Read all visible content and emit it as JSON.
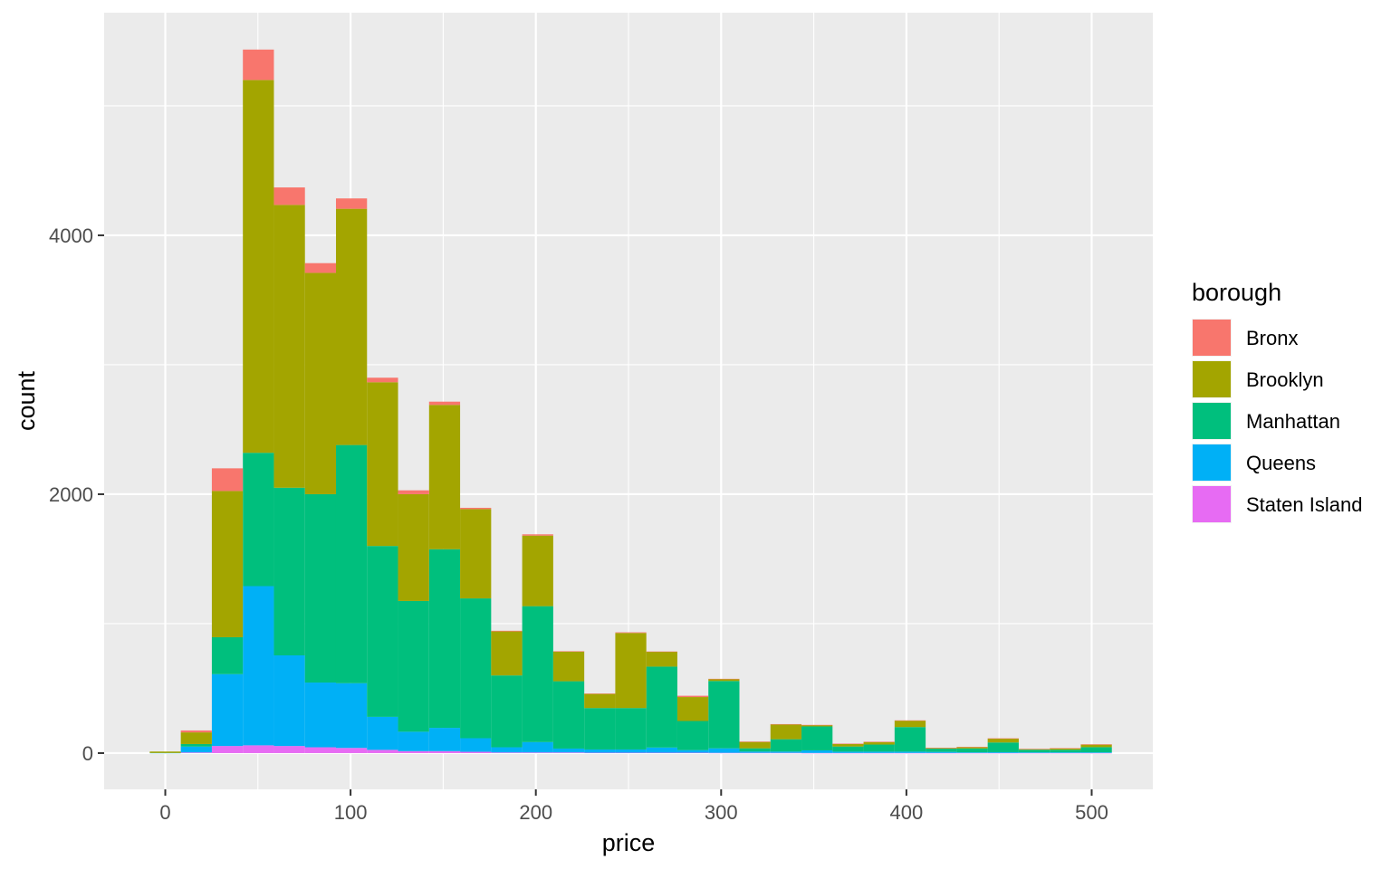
{
  "chart_data": {
    "type": "bar",
    "subtype": "stacked-histogram",
    "title": "",
    "xlabel": "price",
    "ylabel": "count",
    "xlim": [
      -33,
      533
    ],
    "ylim": [
      -280,
      5720
    ],
    "xticks": [
      0,
      100,
      200,
      300,
      400,
      500
    ],
    "xtick_labels": [
      "0",
      "100",
      "200",
      "300",
      "400",
      "500"
    ],
    "yticks": [
      0,
      2000,
      4000
    ],
    "ytick_labels": [
      "0",
      "2000",
      "4000"
    ],
    "grid": true,
    "legend_position": "right",
    "legend_title": "borough",
    "bin_width": 16.75,
    "bin_centers": [
      0,
      16.75,
      33.5,
      50.25,
      67,
      83.75,
      100.5,
      117.25,
      134,
      150.75,
      167.5,
      184.25,
      201,
      217.75,
      234.5,
      251.25,
      268,
      284.75,
      301.5,
      318.25,
      335,
      351.75,
      368.5,
      385.25,
      402,
      418.75,
      435.5,
      452.25,
      469,
      485.75,
      502.5
    ],
    "series": [
      {
        "name": "Staten Island",
        "color": "#E76BF3",
        "values": [
          0,
          5,
          55,
          60,
          55,
          45,
          40,
          25,
          15,
          15,
          10,
          5,
          5,
          5,
          3,
          3,
          3,
          3,
          2,
          2,
          2,
          1,
          1,
          1,
          1,
          1,
          1,
          1,
          1,
          1,
          1
        ]
      },
      {
        "name": "Queens",
        "color": "#00B0F6",
        "values": [
          2,
          45,
          555,
          1230,
          700,
          500,
          500,
          255,
          150,
          180,
          105,
          40,
          80,
          30,
          25,
          25,
          40,
          20,
          35,
          10,
          10,
          20,
          10,
          10,
          10,
          8,
          5,
          6,
          5,
          5,
          5
        ]
      },
      {
        "name": "Manhattan",
        "color": "#00BF7D",
        "values": [
          0,
          20,
          285,
          1030,
          1295,
          1455,
          1840,
          1320,
          1010,
          1380,
          1080,
          555,
          1050,
          520,
          320,
          320,
          625,
          225,
          520,
          25,
          95,
          185,
          40,
          55,
          190,
          25,
          30,
          75,
          20,
          20,
          40
        ]
      },
      {
        "name": "Brooklyn",
        "color": "#A3A500",
        "values": [
          5,
          90,
          1130,
          2880,
          2185,
          1710,
          1825,
          1265,
          825,
          1115,
          690,
          340,
          545,
          230,
          110,
          580,
          115,
          185,
          15,
          50,
          115,
          10,
          20,
          20,
          50,
          5,
          10,
          30,
          5,
          10,
          20
        ]
      },
      {
        "name": "Bronx",
        "color": "#F8766D",
        "values": [
          0,
          15,
          175,
          235,
          135,
          75,
          80,
          35,
          30,
          25,
          10,
          5,
          10,
          2,
          2,
          5,
          2,
          10,
          2,
          2,
          2,
          2,
          2,
          2,
          2,
          2,
          2,
          2,
          2,
          2,
          2
        ]
      }
    ]
  }
}
